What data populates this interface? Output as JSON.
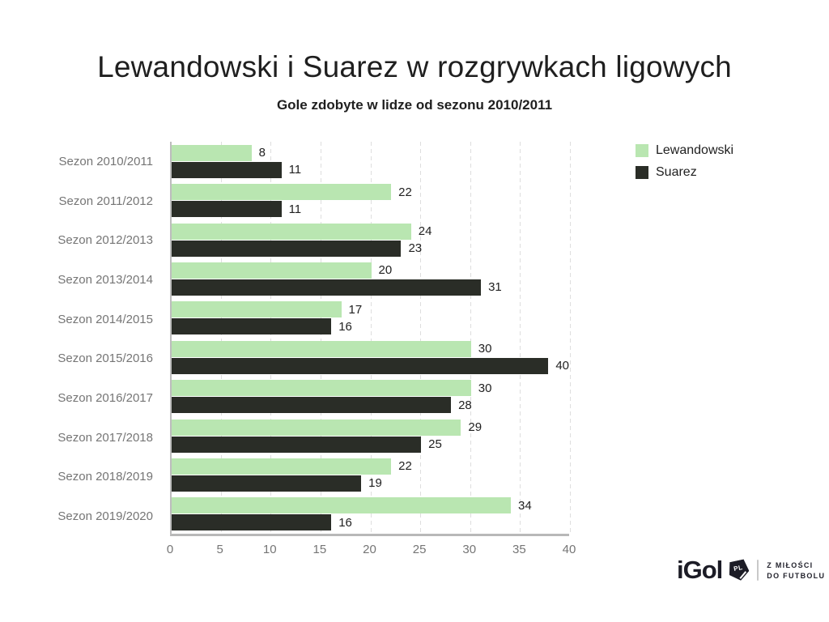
{
  "chart_data": {
    "type": "bar",
    "orientation": "horizontal",
    "title": "Lewandowski i Suarez w rozgrywkach ligowych",
    "subtitle": "Gole zdobyte w lidze od sezonu 2010/2011",
    "categories": [
      "Sezon 2010/2011",
      "Sezon 2011/2012",
      "Sezon 2012/2013",
      "Sezon 2013/2014",
      "Sezon 2014/2015",
      "Sezon 2015/2016",
      "Sezon 2016/2017",
      "Sezon 2017/2018",
      "Sezon 2018/2019",
      "Sezon 2019/2020"
    ],
    "series": [
      {
        "name": "Lewandowski",
        "color": "#b9e6b1",
        "values": [
          8,
          22,
          24,
          20,
          17,
          30,
          30,
          29,
          22,
          34
        ]
      },
      {
        "name": "Suarez",
        "color": "#2a2d27",
        "values": [
          11,
          11,
          23,
          31,
          16,
          40,
          28,
          25,
          19,
          16
        ]
      }
    ],
    "x_ticks": [
      0,
      5,
      10,
      15,
      20,
      25,
      30,
      35,
      40
    ],
    "xlim": [
      0,
      40
    ],
    "grid": "vertical-dashed",
    "legend_position": "top-right",
    "value_labels": true
  },
  "colors": {
    "background": "#ffffff",
    "title_text": "#1f1f1f",
    "category_label": "#757575",
    "tick_label": "#757575",
    "value_label": "#212121",
    "axis_line": "#b8b8b8",
    "gridline": "#dedede",
    "logo": "#1c1c26"
  },
  "branding": {
    "logo_text": "iGol",
    "logo_badge": "PL",
    "tagline_line1": "Z MIŁOŚCI",
    "tagline_line2": "DO FUTBOLU"
  }
}
